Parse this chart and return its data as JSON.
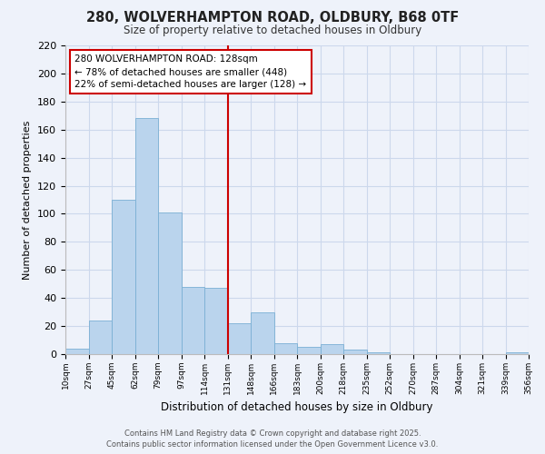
{
  "title": "280, WOLVERHAMPTON ROAD, OLDBURY, B68 0TF",
  "subtitle": "Size of property relative to detached houses in Oldbury",
  "xlabel": "Distribution of detached houses by size in Oldbury",
  "ylabel": "Number of detached properties",
  "bar_labels": [
    "10sqm",
    "27sqm",
    "45sqm",
    "62sqm",
    "79sqm",
    "97sqm",
    "114sqm",
    "131sqm",
    "148sqm",
    "166sqm",
    "183sqm",
    "200sqm",
    "218sqm",
    "235sqm",
    "252sqm",
    "270sqm",
    "287sqm",
    "304sqm",
    "321sqm",
    "339sqm",
    "356sqm"
  ],
  "bar_values": [
    4,
    24,
    110,
    168,
    101,
    48,
    47,
    22,
    30,
    8,
    5,
    7,
    3,
    1,
    0,
    0,
    0,
    0,
    0,
    1
  ],
  "bar_color": "#bad4ed",
  "bar_edge_color": "#7aafd4",
  "grid_color": "#ccd8ec",
  "background_color": "#eef2fa",
  "vline_x_index": 7,
  "vline_color": "#cc0000",
  "ylim": [
    0,
    220
  ],
  "yticks": [
    0,
    20,
    40,
    60,
    80,
    100,
    120,
    140,
    160,
    180,
    200,
    220
  ],
  "annotation_title": "280 WOLVERHAMPTON ROAD: 128sqm",
  "annotation_line1": "← 78% of detached houses are smaller (448)",
  "annotation_line2": "22% of semi-detached houses are larger (128) →",
  "annotation_box_color": "#ffffff",
  "annotation_box_edge": "#cc0000",
  "footer_line1": "Contains HM Land Registry data © Crown copyright and database right 2025.",
  "footer_line2": "Contains public sector information licensed under the Open Government Licence v3.0."
}
